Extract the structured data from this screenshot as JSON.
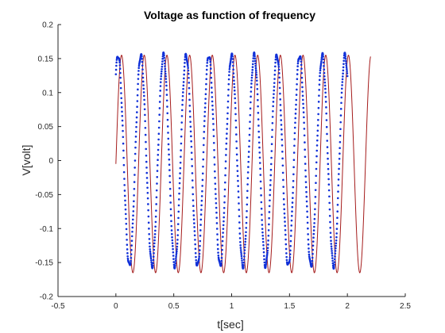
{
  "chart_data": {
    "type": "line",
    "title": "Voltage as function of  frequency",
    "xlabel": "t[sec]",
    "ylabel": "V[volt]",
    "xlim": [
      -0.5,
      2.5
    ],
    "ylim": [
      -0.2,
      0.2
    ],
    "xticks": [
      -0.5,
      0,
      0.5,
      1,
      1.5,
      2,
      2.5
    ],
    "yticks": [
      -0.2,
      -0.15,
      -0.1,
      -0.05,
      0,
      0.05,
      0.1,
      0.15,
      0.2
    ],
    "xtick_labels": [
      "-0.5",
      "0",
      "0.5",
      "1",
      "1.5",
      "2",
      "2.5"
    ],
    "ytick_labels": [
      "-0.2",
      "-0.15",
      "-0.1",
      "-0.05",
      "0",
      "0.05",
      "0.1",
      "0.15",
      "0.2"
    ],
    "grid": false,
    "series": [
      {
        "style": "line",
        "color": "#a51c1c",
        "function": "sine",
        "x_range": [
          0,
          2.2
        ],
        "amplitude": 0.16,
        "period": 0.196,
        "phase_degrees": 0,
        "offset": -0.005
      },
      {
        "style": "markers",
        "color": "#1030d8",
        "function": "sine",
        "x_range": [
          0,
          2.0
        ],
        "amplitude": 0.155,
        "period": 0.196,
        "phase_degrees": 55,
        "offset": 0.0
      }
    ]
  }
}
